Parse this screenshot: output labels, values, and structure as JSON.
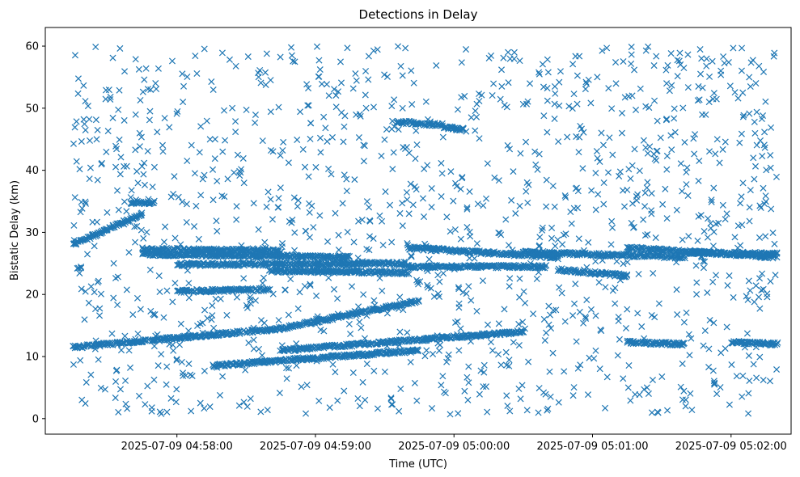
{
  "chart_data": {
    "type": "scatter",
    "title": "Detections in Delay",
    "xlabel": "Time (UTC)",
    "ylabel": "Bistatic Delay (km)",
    "marker": "x",
    "marker_color": "#1f77b4",
    "grid": false,
    "legend": "none",
    "xlim": [
      "2025-07-09 04:57:03",
      "2025-07-09 05:02:26"
    ],
    "ylim": [
      -2.5,
      63
    ],
    "x_ticks": [
      "2025-07-09 04:58:00",
      "2025-07-09 04:59:00",
      "2025-07-09 05:00:00",
      "2025-07-09 05:01:00",
      "2025-07-09 05:02:00"
    ],
    "y_ticks": [
      0,
      10,
      20,
      30,
      40,
      50,
      60
    ],
    "time_range": [
      "2025-07-09 04:57:15",
      "2025-07-09 05:02:20"
    ],
    "tracks": [
      {
        "start": [
          "2025-07-09 04:57:15",
          28.0
        ],
        "end": [
          "2025-07-09 04:57:45",
          33.0
        ]
      },
      {
        "start": [
          "2025-07-09 04:57:40",
          34.8
        ],
        "end": [
          "2025-07-09 04:57:50",
          34.8
        ]
      },
      {
        "start": [
          "2025-07-09 04:57:15",
          11.5
        ],
        "end": [
          "2025-07-09 04:58:45",
          14.5
        ]
      },
      {
        "start": [
          "2025-07-09 04:58:45",
          14.5
        ],
        "end": [
          "2025-07-09 04:59:45",
          19.0
        ]
      },
      {
        "start": [
          "2025-07-09 04:58:45",
          11.0
        ],
        "end": [
          "2025-07-09 05:00:30",
          14.0
        ]
      },
      {
        "start": [
          "2025-07-09 04:58:15",
          8.5
        ],
        "end": [
          "2025-07-09 04:59:45",
          11.0
        ]
      },
      {
        "start": [
          "2025-07-09 04:57:45",
          26.5
        ],
        "end": [
          "2025-07-09 04:59:15",
          26.0
        ]
      },
      {
        "start": [
          "2025-07-09 04:57:45",
          27.3
        ],
        "end": [
          "2025-07-09 04:58:45",
          27.0
        ]
      },
      {
        "start": [
          "2025-07-09 04:58:00",
          24.8
        ],
        "end": [
          "2025-07-09 04:59:40",
          25.0
        ]
      },
      {
        "start": [
          "2025-07-09 04:58:40",
          23.8
        ],
        "end": [
          "2025-07-09 04:59:40",
          23.5
        ]
      },
      {
        "start": [
          "2025-07-09 04:58:00",
          20.5
        ],
        "end": [
          "2025-07-09 04:58:40",
          20.8
        ]
      },
      {
        "start": [
          "2025-07-09 04:59:40",
          27.5
        ],
        "end": [
          "2025-07-09 05:00:45",
          26.0
        ]
      },
      {
        "start": [
          "2025-07-09 04:59:40",
          24.5
        ],
        "end": [
          "2025-07-09 05:00:40",
          24.5
        ]
      },
      {
        "start": [
          "2025-07-09 05:00:30",
          26.8
        ],
        "end": [
          "2025-07-09 05:01:40",
          26.0
        ]
      },
      {
        "start": [
          "2025-07-09 05:00:45",
          24.0
        ],
        "end": [
          "2025-07-09 05:01:15",
          23.0
        ]
      },
      {
        "start": [
          "2025-07-09 05:01:15",
          27.5
        ],
        "end": [
          "2025-07-09 05:02:20",
          26.0
        ]
      },
      {
        "start": [
          "2025-07-09 05:01:40",
          26.8
        ],
        "end": [
          "2025-07-09 05:02:20",
          26.5
        ]
      },
      {
        "start": [
          "2025-07-09 05:01:15",
          12.3
        ],
        "end": [
          "2025-07-09 05:01:40",
          12.0
        ]
      },
      {
        "start": [
          "2025-07-09 05:02:00",
          12.3
        ],
        "end": [
          "2025-07-09 05:02:20",
          12.0
        ]
      },
      {
        "start": [
          "2025-07-09 04:59:35",
          47.8
        ],
        "end": [
          "2025-07-09 04:59:55",
          47.3
        ]
      },
      {
        "start": [
          "2025-07-09 04:59:55",
          47.0
        ],
        "end": [
          "2025-07-09 05:00:05",
          46.5
        ]
      }
    ],
    "background_clutter": {
      "count": 1300,
      "y_range": [
        0.5,
        60
      ]
    }
  }
}
